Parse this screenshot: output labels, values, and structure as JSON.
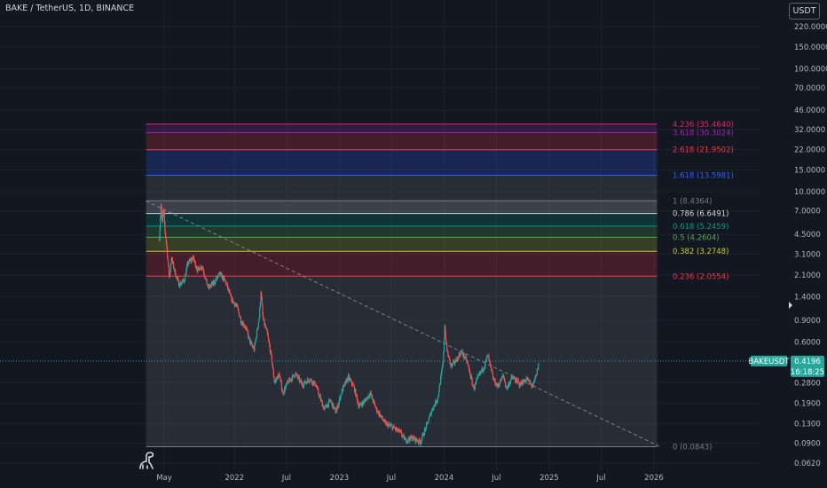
{
  "header": {
    "title": "BAKE / TetherUS, 1D, BINANCE",
    "currency_label": "USDT"
  },
  "colors": {
    "background": "#131722",
    "grid": "#1e222d",
    "candle_up": "#26a69a",
    "candle_down": "#ef5350",
    "trendline": "#9598a1",
    "price_tag": "#26a69a"
  },
  "icons": {
    "logo": "dinosaur-icon"
  },
  "chart_data": {
    "type": "candlestick",
    "symbol": "BAKE / TetherUS",
    "interval": "1D",
    "exchange": "BINANCE",
    "y_scale": "log",
    "ylim": [
      0.055,
      300
    ],
    "xlim": [
      "2021-02-20",
      "2026-02-20"
    ],
    "grid": true,
    "y_ticks": [
      {
        "value": 220,
        "label": "220.0000"
      },
      {
        "value": 150,
        "label": "150.0000"
      },
      {
        "value": 100,
        "label": "100.0000"
      },
      {
        "value": 70,
        "label": "70.0000"
      },
      {
        "value": 46,
        "label": "46.0000"
      },
      {
        "value": 32,
        "label": "32.0000"
      },
      {
        "value": 22,
        "label": "22.0000"
      },
      {
        "value": 15,
        "label": "15.0000"
      },
      {
        "value": 10,
        "label": "10.0000"
      },
      {
        "value": 7,
        "label": "7.0000"
      },
      {
        "value": 4.5,
        "label": "4.5000"
      },
      {
        "value": 3.1,
        "label": "3.1000"
      },
      {
        "value": 2.1,
        "label": "2.1000"
      },
      {
        "value": 1.4,
        "label": "1.4000"
      },
      {
        "value": 0.9,
        "label": "0.9000"
      },
      {
        "value": 0.6,
        "label": "0.6000"
      },
      {
        "value": 0.28,
        "label": "0.2800"
      },
      {
        "value": 0.19,
        "label": "0.1900"
      },
      {
        "value": 0.13,
        "label": "0.1300"
      },
      {
        "value": 0.09,
        "label": "0.0900"
      },
      {
        "value": 0.062,
        "label": "0.0620"
      }
    ],
    "x_ticks": [
      {
        "date": "2021-05-01",
        "label": "May"
      },
      {
        "date": "2022-01-01",
        "label": "2022"
      },
      {
        "date": "2022-07-01",
        "label": "Jul"
      },
      {
        "date": "2023-01-01",
        "label": "2023"
      },
      {
        "date": "2023-07-01",
        "label": "Jul"
      },
      {
        "date": "2024-01-01",
        "label": "2024"
      },
      {
        "date": "2024-07-01",
        "label": "Jul"
      },
      {
        "date": "2025-01-01",
        "label": "2025"
      },
      {
        "date": "2025-07-01",
        "label": "Jul"
      },
      {
        "date": "2026-01-01",
        "label": "2026"
      }
    ],
    "fibonacci": {
      "start_date": "2021-02-27",
      "end_date": "2026-01-12",
      "levels": [
        {
          "ratio": "4.236",
          "price": 35.464,
          "label": "4.236 (35.4640)",
          "color": "#e91e63"
        },
        {
          "ratio": "3.618",
          "price": 30.3024,
          "label": "3.618 (30.3024)",
          "color": "#9c27b0"
        },
        {
          "ratio": "2.618",
          "price": 21.9502,
          "label": "2.618 (21.9502)",
          "color": "#f23645"
        },
        {
          "ratio": "1.618",
          "price": 13.5981,
          "label": "1.618 (13.5981)",
          "color": "#2962ff"
        },
        {
          "ratio": "1",
          "price": 8.4364,
          "label": "1 (8.4364)",
          "color": "#787b86"
        },
        {
          "ratio": "0.786",
          "price": 6.6491,
          "label": "0.786 (6.6491)",
          "color": "#d1d4dc"
        },
        {
          "ratio": "0.618",
          "price": 5.2459,
          "label": "0.618 (5.2459)",
          "color": "#089981"
        },
        {
          "ratio": "0.5",
          "price": 4.2604,
          "label": "0.5 (4.2604)",
          "color": "#4caf50"
        },
        {
          "ratio": "0.382",
          "price": 3.2748,
          "label": "0.382 (3.2748)",
          "color": "#c0ca33"
        },
        {
          "ratio": "0.236",
          "price": 2.0554,
          "label": "0.236 (2.0554)",
          "color": "#f23645"
        },
        {
          "ratio": "0",
          "price": 0.0843,
          "label": "0 (0.0843)",
          "color": "#787b86"
        }
      ]
    },
    "trendline": {
      "start": {
        "date": "2021-02-27",
        "price": 8.4
      },
      "end": {
        "date": "2026-01-20",
        "price": 0.085
      }
    },
    "price_path": [
      {
        "date": "2021-04-14",
        "price": 4.2
      },
      {
        "date": "2021-04-20",
        "price": 7.8
      },
      {
        "date": "2021-04-24",
        "price": 5.6
      },
      {
        "date": "2021-04-29",
        "price": 7.2
      },
      {
        "date": "2021-05-04",
        "price": 4.8
      },
      {
        "date": "2021-05-10",
        "price": 3.5
      },
      {
        "date": "2021-05-19",
        "price": 1.95
      },
      {
        "date": "2021-05-26",
        "price": 2.9
      },
      {
        "date": "2021-06-08",
        "price": 2.2
      },
      {
        "date": "2021-06-22",
        "price": 1.75
      },
      {
        "date": "2021-07-10",
        "price": 1.9
      },
      {
        "date": "2021-07-22",
        "price": 2.6
      },
      {
        "date": "2021-08-10",
        "price": 2.9
      },
      {
        "date": "2021-08-25",
        "price": 2.3
      },
      {
        "date": "2021-09-10",
        "price": 2.5
      },
      {
        "date": "2021-10-01",
        "price": 1.65
      },
      {
        "date": "2021-10-20",
        "price": 1.8
      },
      {
        "date": "2021-11-10",
        "price": 2.15
      },
      {
        "date": "2021-12-01",
        "price": 1.85
      },
      {
        "date": "2021-12-20",
        "price": 1.35
      },
      {
        "date": "2022-01-10",
        "price": 1.15
      },
      {
        "date": "2022-01-24",
        "price": 0.88
      },
      {
        "date": "2022-02-08",
        "price": 0.8
      },
      {
        "date": "2022-02-24",
        "price": 0.6
      },
      {
        "date": "2022-03-10",
        "price": 0.52
      },
      {
        "date": "2022-03-28",
        "price": 0.95
      },
      {
        "date": "2022-04-03",
        "price": 1.55
      },
      {
        "date": "2022-04-10",
        "price": 0.92
      },
      {
        "date": "2022-04-25",
        "price": 0.7
      },
      {
        "date": "2022-05-10",
        "price": 0.44
      },
      {
        "date": "2022-05-20",
        "price": 0.28
      },
      {
        "date": "2022-06-05",
        "price": 0.33
      },
      {
        "date": "2022-06-18",
        "price": 0.23
      },
      {
        "date": "2022-07-05",
        "price": 0.28
      },
      {
        "date": "2022-08-01",
        "price": 0.33
      },
      {
        "date": "2022-08-25",
        "price": 0.27
      },
      {
        "date": "2022-09-20",
        "price": 0.3
      },
      {
        "date": "2022-10-10",
        "price": 0.27
      },
      {
        "date": "2022-11-09",
        "price": 0.17
      },
      {
        "date": "2022-12-01",
        "price": 0.2
      },
      {
        "date": "2022-12-20",
        "price": 0.16
      },
      {
        "date": "2023-01-10",
        "price": 0.24
      },
      {
        "date": "2023-02-01",
        "price": 0.31
      },
      {
        "date": "2023-02-20",
        "price": 0.26
      },
      {
        "date": "2023-03-10",
        "price": 0.18
      },
      {
        "date": "2023-04-01",
        "price": 0.2
      },
      {
        "date": "2023-04-18",
        "price": 0.23
      },
      {
        "date": "2023-05-10",
        "price": 0.17
      },
      {
        "date": "2023-06-10",
        "price": 0.13
      },
      {
        "date": "2023-07-10",
        "price": 0.12
      },
      {
        "date": "2023-08-01",
        "price": 0.11
      },
      {
        "date": "2023-08-20",
        "price": 0.095
      },
      {
        "date": "2023-09-10",
        "price": 0.1
      },
      {
        "date": "2023-10-10",
        "price": 0.092
      },
      {
        "date": "2023-11-01",
        "price": 0.125
      },
      {
        "date": "2023-11-20",
        "price": 0.17
      },
      {
        "date": "2023-12-10",
        "price": 0.21
      },
      {
        "date": "2023-12-28",
        "price": 0.4
      },
      {
        "date": "2024-01-03",
        "price": 0.82
      },
      {
        "date": "2024-01-10",
        "price": 0.52
      },
      {
        "date": "2024-01-25",
        "price": 0.38
      },
      {
        "date": "2024-02-10",
        "price": 0.42
      },
      {
        "date": "2024-03-01",
        "price": 0.5
      },
      {
        "date": "2024-03-20",
        "price": 0.42
      },
      {
        "date": "2024-04-13",
        "price": 0.25
      },
      {
        "date": "2024-05-01",
        "price": 0.32
      },
      {
        "date": "2024-05-20",
        "price": 0.38
      },
      {
        "date": "2024-06-01",
        "price": 0.47
      },
      {
        "date": "2024-06-20",
        "price": 0.3
      },
      {
        "date": "2024-07-05",
        "price": 0.26
      },
      {
        "date": "2024-07-25",
        "price": 0.32
      },
      {
        "date": "2024-08-05",
        "price": 0.25
      },
      {
        "date": "2024-08-25",
        "price": 0.31
      },
      {
        "date": "2024-09-20",
        "price": 0.27
      },
      {
        "date": "2024-10-15",
        "price": 0.3
      },
      {
        "date": "2024-11-05",
        "price": 0.26
      },
      {
        "date": "2024-11-18",
        "price": 0.33
      },
      {
        "date": "2024-11-27",
        "price": 0.4196
      }
    ],
    "last_price": {
      "symbol_label": "BAKEUSDT",
      "price": 0.4196,
      "price_label": "0.4196",
      "countdown": "16:18:25"
    }
  }
}
